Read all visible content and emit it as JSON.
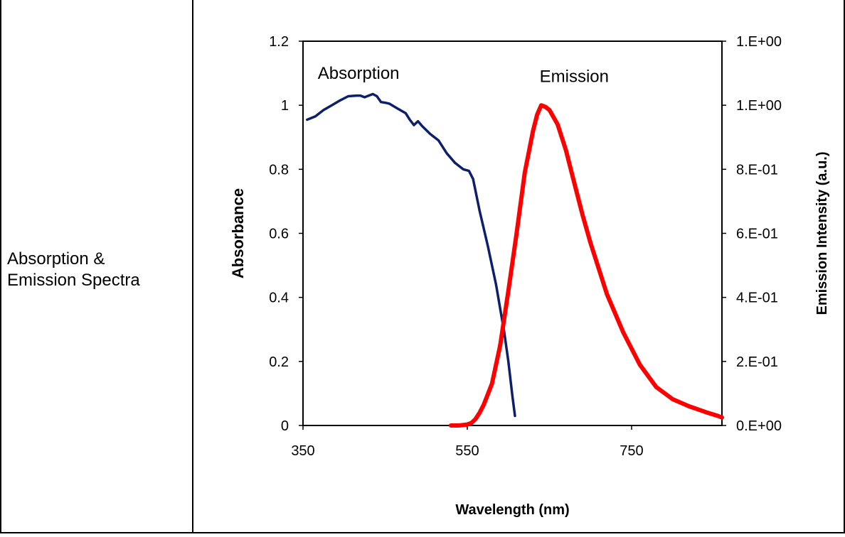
{
  "row_label": {
    "line1": "Absorption &",
    "line2": "Emission Spectra"
  },
  "chart_data": {
    "type": "line",
    "xlabel": "Wavelength (nm)",
    "ylabel_left": "Absorbance",
    "ylabel_right": "Emission Intensity (a.u.)",
    "xlim": [
      350,
      860
    ],
    "ylim_left": [
      0,
      1.2
    ],
    "ylim_right": [
      0,
      1.2
    ],
    "x_ticks": [
      350,
      550,
      750
    ],
    "y_left_ticks": [
      0,
      0.2,
      0.4,
      0.6,
      0.8,
      1,
      1.2
    ],
    "y_left_tick_labels": [
      "0",
      "0.2",
      "0.4",
      "0.6",
      "0.8",
      "1",
      "1.2"
    ],
    "y_right_ticks": [
      0,
      0.2,
      0.4,
      0.6,
      0.8,
      1,
      1.2
    ],
    "y_right_tick_labels": [
      "0.E+00",
      "2.E-01",
      "4.E-01",
      "6.E-01",
      "8.E-01",
      "1.E+00",
      "1.E+00"
    ],
    "grid": false,
    "annotations": [
      {
        "text": "Absorption",
        "x": 368,
        "y": 1.1
      },
      {
        "text": "Emission",
        "x": 638,
        "y": 1.09
      }
    ],
    "series": [
      {
        "name": "Absorption",
        "color": "#0d1f6b",
        "axis": "left",
        "x": [
          355,
          365,
          375,
          385,
          395,
          405,
          415,
          420,
          425,
          435,
          440,
          445,
          450,
          455,
          465,
          475,
          480,
          485,
          490,
          495,
          505,
          515,
          525,
          535,
          545,
          552,
          557,
          565,
          575,
          585,
          595,
          600,
          605,
          608
        ],
        "y": [
          0.955,
          0.965,
          0.985,
          1.0,
          1.015,
          1.028,
          1.03,
          1.03,
          1.025,
          1.035,
          1.028,
          1.01,
          1.008,
          1.005,
          0.99,
          0.975,
          0.955,
          0.938,
          0.95,
          0.935,
          0.91,
          0.89,
          0.85,
          0.82,
          0.8,
          0.795,
          0.77,
          0.67,
          0.56,
          0.44,
          0.29,
          0.2,
          0.09,
          0.03
        ]
      },
      {
        "name": "Emission",
        "color": "#ff0000",
        "axis": "right",
        "x": [
          530,
          540,
          550,
          555,
          560,
          565,
          570,
          580,
          590,
          600,
          610,
          620,
          630,
          635,
          640,
          645,
          650,
          660,
          670,
          680,
          690,
          700,
          720,
          740,
          760,
          780,
          800,
          820,
          840,
          855,
          860
        ],
        "y": [
          0.0,
          0.0,
          0.003,
          0.008,
          0.02,
          0.04,
          0.065,
          0.13,
          0.25,
          0.42,
          0.6,
          0.79,
          0.92,
          0.97,
          1.0,
          0.995,
          0.985,
          0.94,
          0.86,
          0.76,
          0.66,
          0.57,
          0.41,
          0.29,
          0.19,
          0.12,
          0.082,
          0.06,
          0.042,
          0.03,
          0.025
        ]
      }
    ]
  }
}
